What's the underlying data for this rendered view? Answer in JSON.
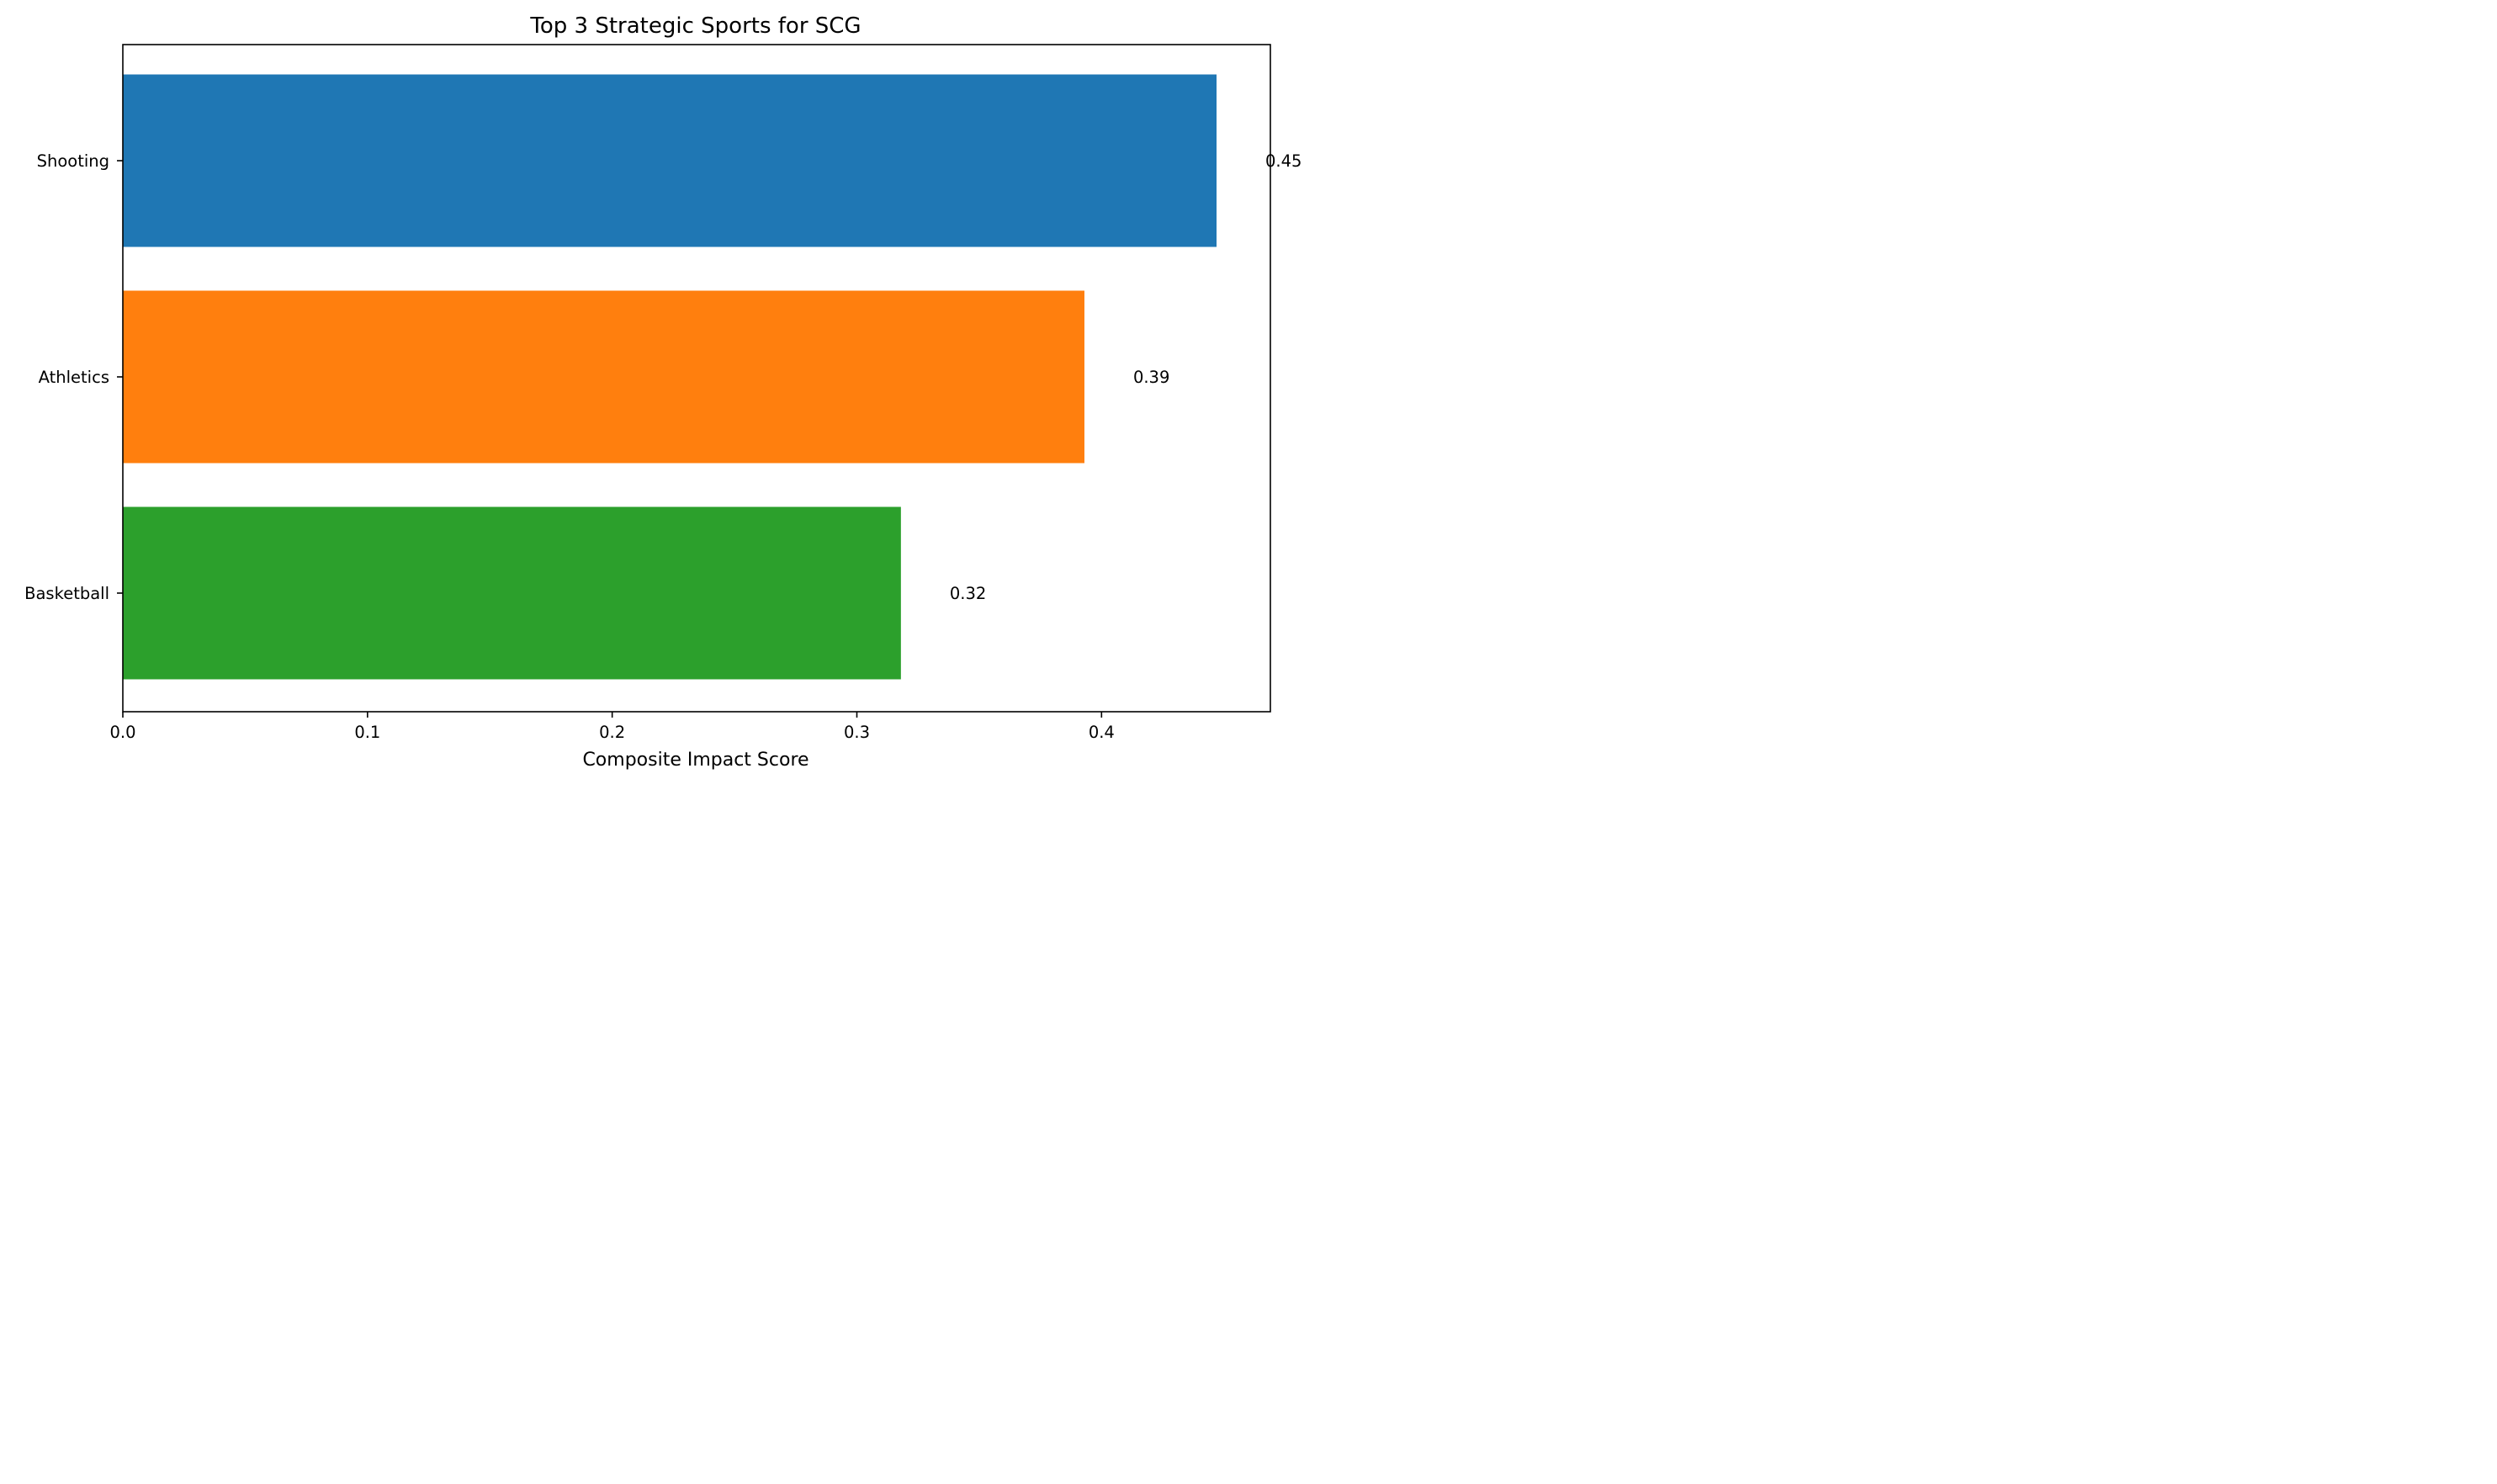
{
  "chart_data": {
    "type": "bar",
    "orientation": "horizontal",
    "title": "Top 3 Strategic Sports for SCG",
    "xlabel": "Composite Impact Score",
    "ylabel": "",
    "categories": [
      "Shooting",
      "Athletics",
      "Basketball"
    ],
    "values": [
      0.447,
      0.393,
      0.318
    ],
    "data_labels": [
      "0.45",
      "0.39",
      "0.32"
    ],
    "colors": [
      "#1f77b4",
      "#ff7f0e",
      "#2ca02c"
    ],
    "xlim": [
      0.0,
      0.469
    ],
    "xticks": [
      0.0,
      0.1,
      0.2,
      0.3,
      0.4
    ],
    "xtick_labels": [
      "0.0",
      "0.1",
      "0.2",
      "0.3",
      "0.4"
    ],
    "grid": false,
    "legend": "none"
  }
}
